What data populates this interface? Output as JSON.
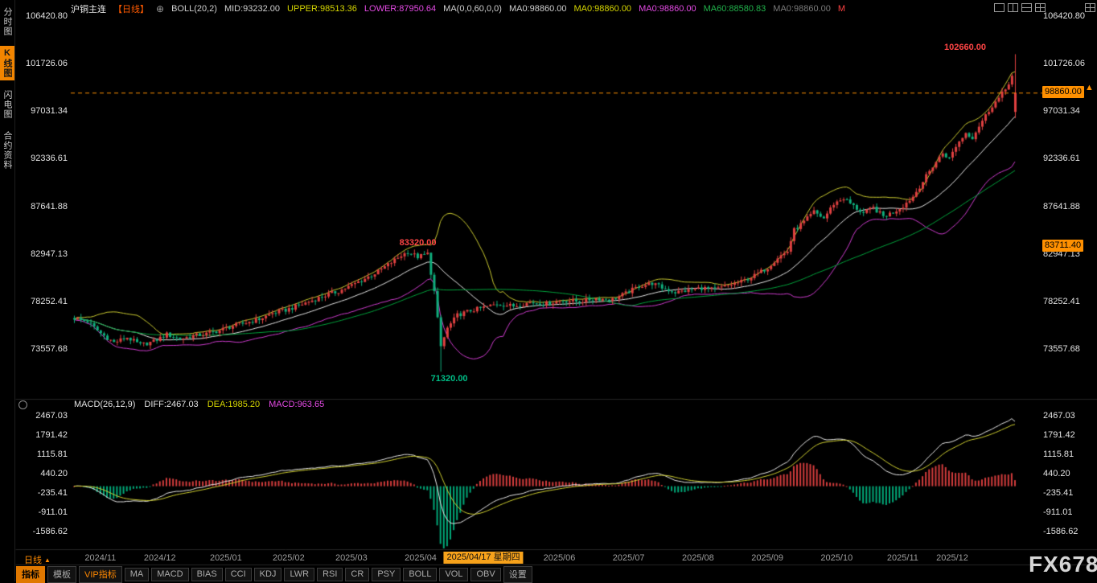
{
  "watermark": "FX678",
  "icons": {
    "circle_plus": "⊕",
    "period_arrow": "▲",
    "pointer_arrow": "▲"
  },
  "sidebar": {
    "items": [
      {
        "label": "分时图",
        "name": "timeline-chart",
        "active": false
      },
      {
        "label": "K线图",
        "name": "kline-chart",
        "active": true
      },
      {
        "label": "闪电图",
        "name": "flash-chart",
        "active": false
      },
      {
        "label": "合约资料",
        "name": "contract-info",
        "active": false
      }
    ]
  },
  "header": {
    "symbol": "沪铜主连",
    "period": "【日线】",
    "segments": [
      {
        "text": "BOLL(20,2)",
        "color": "#cfcfcf",
        "name": "boll-label"
      },
      {
        "text": "MID:93232.00",
        "color": "#cfcfcf",
        "name": "boll-mid-value"
      },
      {
        "text": "UPPER:98513.36",
        "color": "#d6d600",
        "name": "boll-upper-value"
      },
      {
        "text": "LOWER:87950.64",
        "color": "#e54ae5",
        "name": "boll-lower-value"
      },
      {
        "text": "MA(0,0,60,0,0)",
        "color": "#cfcfcf",
        "name": "ma-settings-label"
      },
      {
        "text": "MA0:98860.00",
        "color": "#cfcfcf",
        "name": "ma1-value"
      },
      {
        "text": "MA0:98860.00",
        "color": "#d6d600",
        "name": "ma2-value"
      },
      {
        "text": "MA0:98860.00",
        "color": "#e54ae5",
        "name": "ma3-value"
      },
      {
        "text": "MA60:88580.83",
        "color": "#21b24b",
        "name": "ma60-value"
      },
      {
        "text": "MA0:98860.00",
        "color": "#7a7a7a",
        "name": "ma5-value"
      },
      {
        "text": "M",
        "color": "#ff4242",
        "name": "ma-truncated-label"
      }
    ]
  },
  "macd_header": {
    "label": "MACD(26,12,9)",
    "diff": "DIFF:2467.03",
    "dea": "DEA:1985.20",
    "macd": "MACD:963.65"
  },
  "axes": {
    "main": [
      "106420.80",
      "101726.06",
      "97031.34",
      "92336.61",
      "87641.88",
      "82947.13",
      "78252.41",
      "73557.68"
    ],
    "macd": [
      "2467.03",
      "1791.42",
      "1115.81",
      "440.20",
      "-235.41",
      "-911.01",
      "-1586.62"
    ]
  },
  "badges": {
    "last_price": "98860.00",
    "magenta_value": "83711.40"
  },
  "annotations": {
    "high": "102660.00",
    "peak": "83320.00",
    "low": "71320.00"
  },
  "xaxis": {
    "period_label": "日线",
    "labels": [
      {
        "text": "2024/11",
        "index": 8,
        "highlight": false
      },
      {
        "text": "2024/12",
        "index": 26,
        "highlight": false
      },
      {
        "text": "2025/01",
        "index": 46,
        "highlight": false
      },
      {
        "text": "2025/02",
        "index": 65,
        "highlight": false
      },
      {
        "text": "2025/03",
        "index": 84,
        "highlight": false
      },
      {
        "text": "2025/04",
        "index": 105,
        "highlight": false
      },
      {
        "text": "2025/04/17 星期四",
        "index": 124,
        "highlight": true
      },
      {
        "text": "2025/06",
        "index": 147,
        "highlight": false
      },
      {
        "text": "2025/07",
        "index": 168,
        "highlight": false
      },
      {
        "text": "2025/08",
        "index": 189,
        "highlight": false
      },
      {
        "text": "2025/09",
        "index": 210,
        "highlight": false
      },
      {
        "text": "2025/10",
        "index": 231,
        "highlight": false
      },
      {
        "text": "2025/11",
        "index": 251,
        "highlight": false
      },
      {
        "text": "2025/12",
        "index": 266,
        "highlight": false
      }
    ]
  },
  "toolbar": {
    "tabs": [
      {
        "label": "指标",
        "name": "indicators",
        "style": "active"
      },
      {
        "label": "模板",
        "name": "templates",
        "style": "normal"
      },
      {
        "label": "VIP指标",
        "name": "vip-indicators",
        "style": "vip"
      },
      {
        "label": "MA",
        "name": "ma",
        "style": "normal"
      },
      {
        "label": "MACD",
        "name": "macd",
        "style": "normal"
      },
      {
        "label": "BIAS",
        "name": "bias",
        "style": "normal"
      },
      {
        "label": "CCI",
        "name": "cci",
        "style": "normal"
      },
      {
        "label": "KDJ",
        "name": "kdj",
        "style": "normal"
      },
      {
        "label": "LWR",
        "name": "lwr",
        "style": "normal"
      },
      {
        "label": "RSI",
        "name": "rsi",
        "style": "normal"
      },
      {
        "label": "CR",
        "name": "cr",
        "style": "normal"
      },
      {
        "label": "PSY",
        "name": "psy",
        "style": "normal"
      },
      {
        "label": "BOLL",
        "name": "boll",
        "style": "normal"
      },
      {
        "label": "VOL",
        "name": "vol",
        "style": "normal"
      },
      {
        "label": "OBV",
        "name": "obv",
        "style": "normal"
      },
      {
        "label": "设置",
        "name": "settings",
        "style": "normal"
      }
    ]
  },
  "chart_data": {
    "type": "candlestick+macd",
    "symbol": "沪铜主连",
    "period": "日线",
    "title": "沪铜主连 日线 K线图 BOLL(20,2) + MACD(26,12,9)",
    "candle_count": 286,
    "last_price": 98860.0,
    "high_annotation": 102660.0,
    "low_annotation": 71320.0,
    "peak_annotation": 83320.0,
    "peak_index": 101,
    "low_index": 111,
    "y_ticks_main": [
      106420.8,
      101726.06,
      97031.34,
      92336.61,
      87641.88,
      82947.13,
      78252.41,
      73557.68
    ],
    "y_ticks_macd": [
      2467.03,
      1791.42,
      1115.81,
      440.2,
      -235.41,
      -911.01,
      -1586.62
    ],
    "x_tick_labels": [
      "2024/11",
      "2024/12",
      "2025/01",
      "2025/02",
      "2025/03",
      "2025/04",
      "2025/04/17 星期四",
      "2025/06",
      "2025/07",
      "2025/08",
      "2025/09",
      "2025/10",
      "2025/11",
      "2025/12"
    ],
    "boll": {
      "period": 20,
      "mult": 2,
      "mid": 93232.0,
      "upper": 98513.36,
      "lower": 87950.64
    },
    "ma60": 88580.83,
    "macd": {
      "fast": 12,
      "slow": 26,
      "signal": 9,
      "diff": 2467.03,
      "dea": 1985.2,
      "bar": 963.65
    },
    "price_keyframes": [
      [
        0,
        76600
      ],
      [
        4,
        76250
      ],
      [
        8,
        75100
      ],
      [
        12,
        74200
      ],
      [
        16,
        74700
      ],
      [
        20,
        73950
      ],
      [
        24,
        74300
      ],
      [
        28,
        75000
      ],
      [
        32,
        74550
      ],
      [
        36,
        74850
      ],
      [
        40,
        75050
      ],
      [
        44,
        75400
      ],
      [
        48,
        75850
      ],
      [
        52,
        76150
      ],
      [
        56,
        76500
      ],
      [
        60,
        77100
      ],
      [
        64,
        77400
      ],
      [
        68,
        77850
      ],
      [
        72,
        78350
      ],
      [
        76,
        78850
      ],
      [
        80,
        79250
      ],
      [
        84,
        79850
      ],
      [
        88,
        80500
      ],
      [
        92,
        81200
      ],
      [
        96,
        82100
      ],
      [
        99,
        82800
      ],
      [
        101,
        83150
      ],
      [
        104,
        82650
      ],
      [
        107,
        82950
      ],
      [
        109,
        79200
      ],
      [
        111,
        73800
      ],
      [
        113,
        75600
      ],
      [
        116,
        76900
      ],
      [
        120,
        77350
      ],
      [
        124,
        77650
      ],
      [
        128,
        78000
      ],
      [
        133,
        77800
      ],
      [
        138,
        78150
      ],
      [
        143,
        78050
      ],
      [
        148,
        78350
      ],
      [
        153,
        78250
      ],
      [
        158,
        78550
      ],
      [
        163,
        78450
      ],
      [
        167,
        79050
      ],
      [
        171,
        79750
      ],
      [
        175,
        80050
      ],
      [
        178,
        79600
      ],
      [
        182,
        79150
      ],
      [
        186,
        79350
      ],
      [
        190,
        79600
      ],
      [
        194,
        79400
      ],
      [
        198,
        79850
      ],
      [
        202,
        80200
      ],
      [
        206,
        80800
      ],
      [
        210,
        81600
      ],
      [
        213,
        82600
      ],
      [
        216,
        83200
      ],
      [
        218,
        85300
      ],
      [
        221,
        86100
      ],
      [
        224,
        87100
      ],
      [
        227,
        86450
      ],
      [
        230,
        87900
      ],
      [
        233,
        88450
      ],
      [
        236,
        87650
      ],
      [
        239,
        86950
      ],
      [
        242,
        87500
      ],
      [
        245,
        86650
      ],
      [
        248,
        87050
      ],
      [
        251,
        87700
      ],
      [
        254,
        88600
      ],
      [
        257,
        90100
      ],
      [
        260,
        91600
      ],
      [
        263,
        92900
      ],
      [
        265,
        92350
      ],
      [
        267,
        93600
      ],
      [
        270,
        94900
      ],
      [
        272,
        94450
      ],
      [
        274,
        95600
      ],
      [
        276,
        96600
      ],
      [
        278,
        97600
      ],
      [
        280,
        98300
      ],
      [
        282,
        99200
      ],
      [
        284,
        100500
      ],
      [
        285,
        98860
      ]
    ],
    "render": {
      "jitter": 220,
      "wick": 420
    }
  }
}
